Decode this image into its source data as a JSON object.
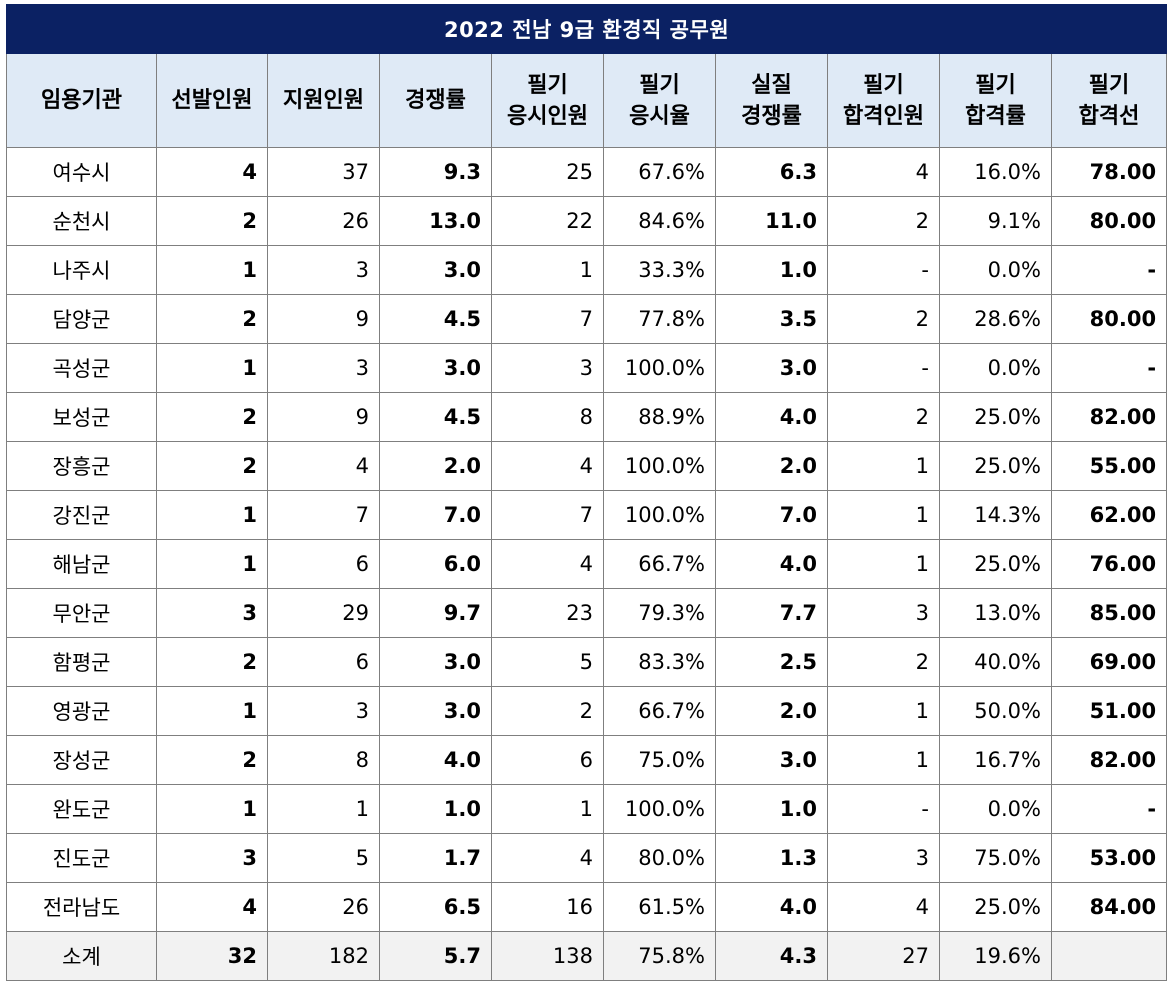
{
  "title": "2022 전남 9급 환경직  공무원",
  "headers": [
    [
      "임용기관"
    ],
    [
      "선발인원"
    ],
    [
      "지원인원"
    ],
    [
      "경쟁률"
    ],
    [
      "필기",
      "응시인원"
    ],
    [
      "필기",
      "응시율"
    ],
    [
      "실질",
      "경쟁률"
    ],
    [
      "필기",
      "합격인원"
    ],
    [
      "필기",
      "합격률"
    ],
    [
      "필기",
      "합격선"
    ]
  ],
  "rows": [
    [
      "여수시",
      "4",
      "37",
      "9.3",
      "25",
      "67.6%",
      "6.3",
      "4",
      "16.0%",
      "78.00"
    ],
    [
      "순천시",
      "2",
      "26",
      "13.0",
      "22",
      "84.6%",
      "11.0",
      "2",
      "9.1%",
      "80.00"
    ],
    [
      "나주시",
      "1",
      "3",
      "3.0",
      "1",
      "33.3%",
      "1.0",
      "-",
      "0.0%",
      "-"
    ],
    [
      "담양군",
      "2",
      "9",
      "4.5",
      "7",
      "77.8%",
      "3.5",
      "2",
      "28.6%",
      "80.00"
    ],
    [
      "곡성군",
      "1",
      "3",
      "3.0",
      "3",
      "100.0%",
      "3.0",
      "-",
      "0.0%",
      "-"
    ],
    [
      "보성군",
      "2",
      "9",
      "4.5",
      "8",
      "88.9%",
      "4.0",
      "2",
      "25.0%",
      "82.00"
    ],
    [
      "장흥군",
      "2",
      "4",
      "2.0",
      "4",
      "100.0%",
      "2.0",
      "1",
      "25.0%",
      "55.00"
    ],
    [
      "강진군",
      "1",
      "7",
      "7.0",
      "7",
      "100.0%",
      "7.0",
      "1",
      "14.3%",
      "62.00"
    ],
    [
      "해남군",
      "1",
      "6",
      "6.0",
      "4",
      "66.7%",
      "4.0",
      "1",
      "25.0%",
      "76.00"
    ],
    [
      "무안군",
      "3",
      "29",
      "9.7",
      "23",
      "79.3%",
      "7.7",
      "3",
      "13.0%",
      "85.00"
    ],
    [
      "함평군",
      "2",
      "6",
      "3.0",
      "5",
      "83.3%",
      "2.5",
      "2",
      "40.0%",
      "69.00"
    ],
    [
      "영광군",
      "1",
      "3",
      "3.0",
      "2",
      "66.7%",
      "2.0",
      "1",
      "50.0%",
      "51.00"
    ],
    [
      "장성군",
      "2",
      "8",
      "4.0",
      "6",
      "75.0%",
      "3.0",
      "1",
      "16.7%",
      "82.00"
    ],
    [
      "완도군",
      "1",
      "1",
      "1.0",
      "1",
      "100.0%",
      "1.0",
      "-",
      "0.0%",
      "-"
    ],
    [
      "진도군",
      "3",
      "5",
      "1.7",
      "4",
      "80.0%",
      "1.3",
      "3",
      "75.0%",
      "53.00"
    ],
    [
      "전라남도",
      "4",
      "26",
      "6.5",
      "16",
      "61.5%",
      "4.0",
      "4",
      "25.0%",
      "84.00"
    ]
  ],
  "subtotal": [
    "소계",
    "32",
    "182",
    "5.7",
    "138",
    "75.8%",
    "4.3",
    "27",
    "19.6%",
    ""
  ],
  "colors": {
    "title_bg": "#0b2163",
    "header_bg": "#dfeaf6",
    "cutoff_text": "#1f6fb5",
    "subtotal_bg": "#f2f2f2",
    "border": "#7f7f7f"
  }
}
